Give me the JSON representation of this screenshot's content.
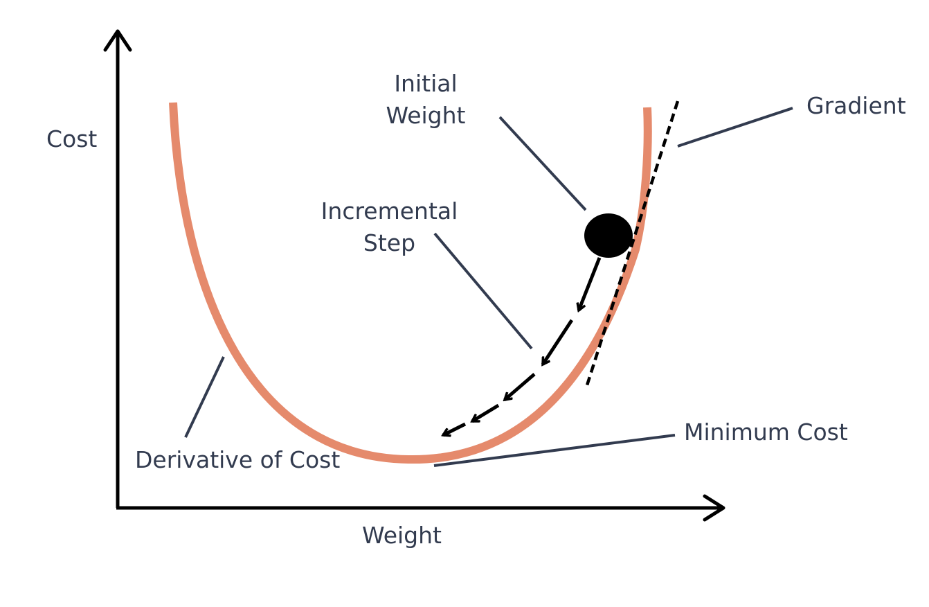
{
  "labels": {
    "y_axis": "Cost",
    "x_axis": "Weight",
    "initial_weight_line1": "Initial",
    "initial_weight_line2": "Weight",
    "gradient": "Gradient",
    "incremental_step_line1": "Incremental",
    "incremental_step_line2": "Step",
    "minimum_cost": "Minimum Cost",
    "derivative_of_cost": "Derivative of Cost"
  },
  "colors": {
    "curve": "#e58a6c",
    "axis": "#000000",
    "text": "#323b4f",
    "leader_line": "#323b4f",
    "point": "#000000"
  }
}
